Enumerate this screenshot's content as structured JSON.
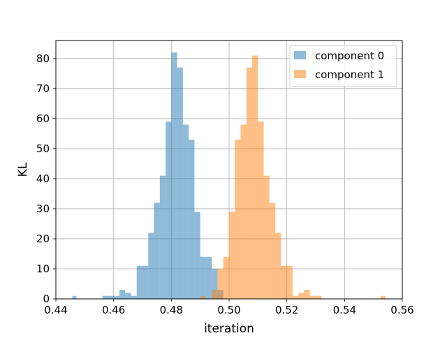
{
  "chart_data": {
    "type": "bar",
    "xlabel": "iteration",
    "ylabel": "KL",
    "xlim": [
      0.44,
      0.56
    ],
    "ylim": [
      0,
      86
    ],
    "xticks": [
      "0.44",
      "0.46",
      "0.48",
      "0.50",
      "0.52",
      "0.54",
      "0.56"
    ],
    "xtick_values": [
      0.44,
      0.46,
      0.48,
      0.5,
      0.52,
      0.54,
      0.56
    ],
    "yticks": [
      "0",
      "10",
      "20",
      "30",
      "40",
      "50",
      "60",
      "70",
      "80"
    ],
    "ytick_values": [
      0,
      10,
      20,
      30,
      40,
      50,
      60,
      70,
      80
    ],
    "grid": true,
    "legend_position": "top-right",
    "series": [
      {
        "name": "component 0",
        "color": "#1f77b4",
        "opacity": 0.5,
        "bins": [
          {
            "x0": 0.4457,
            "x1": 0.4471,
            "count": 1
          },
          {
            "x0": 0.4561,
            "x1": 0.458,
            "count": 1
          },
          {
            "x0": 0.458,
            "x1": 0.46,
            "count": 1
          },
          {
            "x0": 0.46,
            "x1": 0.462,
            "count": 1
          },
          {
            "x0": 0.462,
            "x1": 0.464,
            "count": 3
          },
          {
            "x0": 0.464,
            "x1": 0.466,
            "count": 2
          },
          {
            "x0": 0.466,
            "x1": 0.468,
            "count": 1
          },
          {
            "x0": 0.468,
            "x1": 0.47,
            "count": 11
          },
          {
            "x0": 0.47,
            "x1": 0.472,
            "count": 11
          },
          {
            "x0": 0.472,
            "x1": 0.474,
            "count": 22
          },
          {
            "x0": 0.474,
            "x1": 0.476,
            "count": 32
          },
          {
            "x0": 0.476,
            "x1": 0.478,
            "count": 41
          },
          {
            "x0": 0.478,
            "x1": 0.48,
            "count": 59
          },
          {
            "x0": 0.48,
            "x1": 0.482,
            "count": 82
          },
          {
            "x0": 0.482,
            "x1": 0.484,
            "count": 77
          },
          {
            "x0": 0.484,
            "x1": 0.486,
            "count": 58
          },
          {
            "x0": 0.486,
            "x1": 0.488,
            "count": 53
          },
          {
            "x0": 0.488,
            "x1": 0.49,
            "count": 29
          },
          {
            "x0": 0.49,
            "x1": 0.492,
            "count": 14
          },
          {
            "x0": 0.492,
            "x1": 0.494,
            "count": 14
          },
          {
            "x0": 0.494,
            "x1": 0.496,
            "count": 10
          },
          {
            "x0": 0.496,
            "x1": 0.498,
            "count": 3
          }
        ]
      },
      {
        "name": "component 1",
        "color": "#ff7f0e",
        "opacity": 0.5,
        "bins": [
          {
            "x0": 0.49,
            "x1": 0.492,
            "count": 1
          },
          {
            "x0": 0.494,
            "x1": 0.496,
            "count": 3
          },
          {
            "x0": 0.496,
            "x1": 0.498,
            "count": 10
          },
          {
            "x0": 0.498,
            "x1": 0.5,
            "count": 14
          },
          {
            "x0": 0.5,
            "x1": 0.502,
            "count": 29
          },
          {
            "x0": 0.502,
            "x1": 0.504,
            "count": 53
          },
          {
            "x0": 0.504,
            "x1": 0.506,
            "count": 58
          },
          {
            "x0": 0.506,
            "x1": 0.508,
            "count": 77
          },
          {
            "x0": 0.508,
            "x1": 0.51,
            "count": 81
          },
          {
            "x0": 0.51,
            "x1": 0.512,
            "count": 59
          },
          {
            "x0": 0.512,
            "x1": 0.514,
            "count": 41
          },
          {
            "x0": 0.514,
            "x1": 0.516,
            "count": 32
          },
          {
            "x0": 0.516,
            "x1": 0.518,
            "count": 22
          },
          {
            "x0": 0.518,
            "x1": 0.52,
            "count": 11
          },
          {
            "x0": 0.52,
            "x1": 0.522,
            "count": 11
          },
          {
            "x0": 0.522,
            "x1": 0.524,
            "count": 1
          },
          {
            "x0": 0.524,
            "x1": 0.526,
            "count": 2
          },
          {
            "x0": 0.526,
            "x1": 0.528,
            "count": 3
          },
          {
            "x0": 0.528,
            "x1": 0.53,
            "count": 1
          },
          {
            "x0": 0.53,
            "x1": 0.532,
            "count": 1
          },
          {
            "x0": 0.5525,
            "x1": 0.5542,
            "count": 1
          }
        ]
      }
    ]
  }
}
